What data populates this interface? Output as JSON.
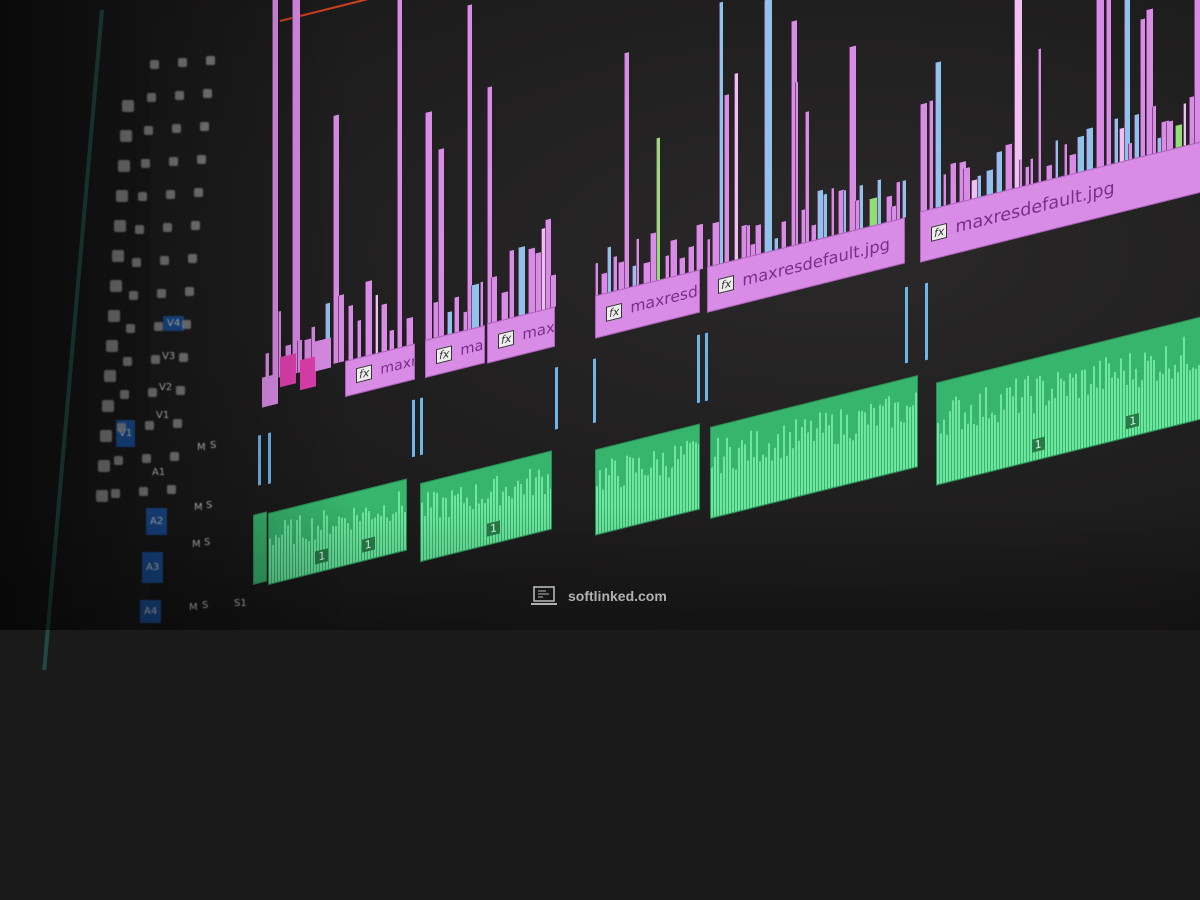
{
  "colors": {
    "video_clip": "#d98ce6",
    "audio_clip": "#37b56d",
    "marker": "#6fb5e8",
    "selected_track": "#1a4e96",
    "work_area": "#d04020"
  },
  "tracks": {
    "video": [
      "V4",
      "V3",
      "V2",
      "V1"
    ],
    "audio": [
      "A1",
      "A2",
      "A3",
      "A4"
    ],
    "mute_label": "M",
    "solo_label": "S",
    "submix": "S1"
  },
  "clips": [
    {
      "fx": "fx",
      "label": "maxres"
    },
    {
      "fx": "fx",
      "label": "maxre"
    },
    {
      "fx": "fx",
      "label": "maxre"
    },
    {
      "fx": "fx",
      "label": "maxresde"
    },
    {
      "fx": "fx",
      "label": "maxresdefault.jpg"
    },
    {
      "fx": "fx",
      "label": "maxresdefault.jpg"
    }
  ],
  "audio_clips": [
    {
      "markers": [
        "1",
        "1"
      ]
    },
    {
      "markers": [
        "1"
      ]
    },
    {
      "markers": []
    },
    {
      "markers": []
    },
    {
      "markers": [
        "1",
        "1"
      ]
    }
  ],
  "watermark": {
    "text": "softlinked.com",
    "icon": "laptop-code-icon"
  }
}
